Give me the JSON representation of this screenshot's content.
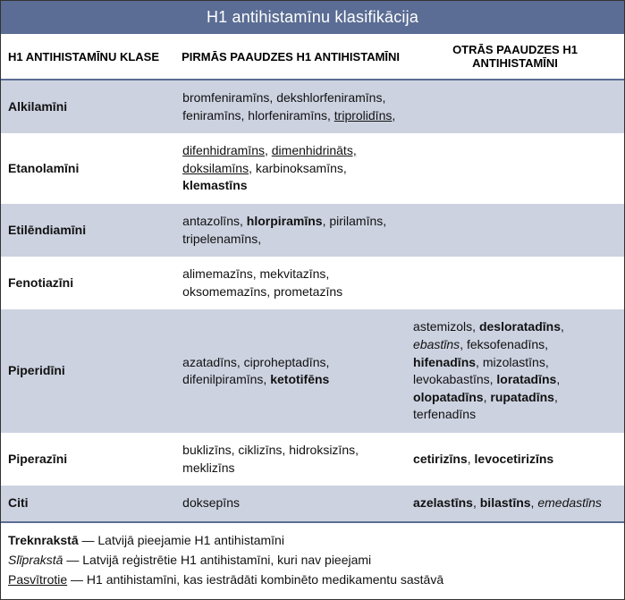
{
  "title": "H1 antihistamīnu klasifikācija",
  "headers": {
    "class": "H1 ANTIHISTAMĪNU KLASE",
    "gen1": "PIRMĀS PAAUDZES H1 ANTIHISTAMĪNI",
    "gen2": "OTRĀS PAAUDZES H1 ANTIHISTAMĪNI"
  },
  "rows": [
    {
      "band": "blue",
      "class": "Alkilamīni",
      "gen1": [
        {
          "t": "bromfeniramīns, dekshlorfeniramīns, feniramīns, hlorfeniramīns, "
        },
        {
          "t": "triprolidīns",
          "u": true
        },
        {
          "t": ","
        }
      ],
      "gen2": []
    },
    {
      "band": "white",
      "class": "Etanolamīni",
      "gen1": [
        {
          "t": "difenhidramīns",
          "u": true
        },
        {
          "t": ", "
        },
        {
          "t": "dimenhidrināts, ",
          "u": true
        },
        {
          "t": "doksilamīns",
          "u": true
        },
        {
          "t": ",\nkarbinoksamīns, "
        },
        {
          "t": "klemastīns",
          "b": true
        }
      ],
      "gen2": []
    },
    {
      "band": "blue",
      "class": "Etilēndiamīni",
      "gen1": [
        {
          "t": "antazolīns, "
        },
        {
          "t": "hlorpiramīns",
          "b": true
        },
        {
          "t": ", pirilamīns, tripelenamīns,"
        }
      ],
      "gen2": []
    },
    {
      "band": "white",
      "class": "Fenotiazīni",
      "gen1": [
        {
          "t": "alimemazīns, mekvitazīns, oksomemazīns, prometazīns"
        }
      ],
      "gen2": []
    },
    {
      "band": "blue",
      "class": "Piperidīni",
      "gen1": [
        {
          "t": "azatadīns, ciproheptadīns, difenilpiramīns,\n"
        },
        {
          "t": "ketotifēns",
          "b": true
        }
      ],
      "gen2": [
        {
          "t": "astemizols, "
        },
        {
          "t": "desloratadīns",
          "b": true
        },
        {
          "t": ", "
        },
        {
          "t": "ebastīns",
          "i": true
        },
        {
          "t": ", feksofenadīns, "
        },
        {
          "t": "hifenadīns",
          "b": true
        },
        {
          "t": ", mizolastīns, levokabastīns, "
        },
        {
          "t": "loratadīns",
          "b": true
        },
        {
          "t": ", "
        },
        {
          "t": "olopatadīns",
          "b": true
        },
        {
          "t": ", "
        },
        {
          "t": "rupatadīns",
          "b": true
        },
        {
          "t": ", terfenadīns"
        }
      ]
    },
    {
      "band": "white",
      "class": "Piperazīni",
      "gen1": [
        {
          "t": "buklizīns, ciklizīns, hidroksizīns, meklizīns"
        }
      ],
      "gen2": [
        {
          "t": "cetirizīns",
          "b": true
        },
        {
          "t": ", "
        },
        {
          "t": "levocetirizīns",
          "b": true
        }
      ]
    },
    {
      "band": "blue",
      "class": "Citi",
      "gen1": [
        {
          "t": "doksepīns"
        }
      ],
      "gen2": [
        {
          "t": "azelastīns",
          "b": true
        },
        {
          "t": ", "
        },
        {
          "t": "bilastīns",
          "b": true
        },
        {
          "t": ", "
        },
        {
          "t": "emedastīns",
          "i": true
        }
      ]
    }
  ],
  "legend": {
    "bold_label": "Treknrakstā",
    "bold_text": " — Latvijā pieejamie H1 antihistamīni",
    "italic_label": "Slīprakstā",
    "italic_text": " — Latvijā reģistrētie H1 antihistamīni, kuri nav pieejami",
    "underline_label": "Pasvītrotie",
    "underline_text": " — H1 antihistamīni, kas iestrādāti kombinēto medikamentu sastāvā"
  },
  "style": {
    "header_bg": "#5b6d94",
    "band_blue": "#ccd2e0",
    "band_white": "#ffffff",
    "text_color": "#111111",
    "title_color": "#ffffff",
    "font_family": "Arial, Helvetica, sans-serif",
    "title_fontsize": 18,
    "header_fontsize": 13,
    "cell_fontsize": 14,
    "legend_fontsize": 14
  }
}
